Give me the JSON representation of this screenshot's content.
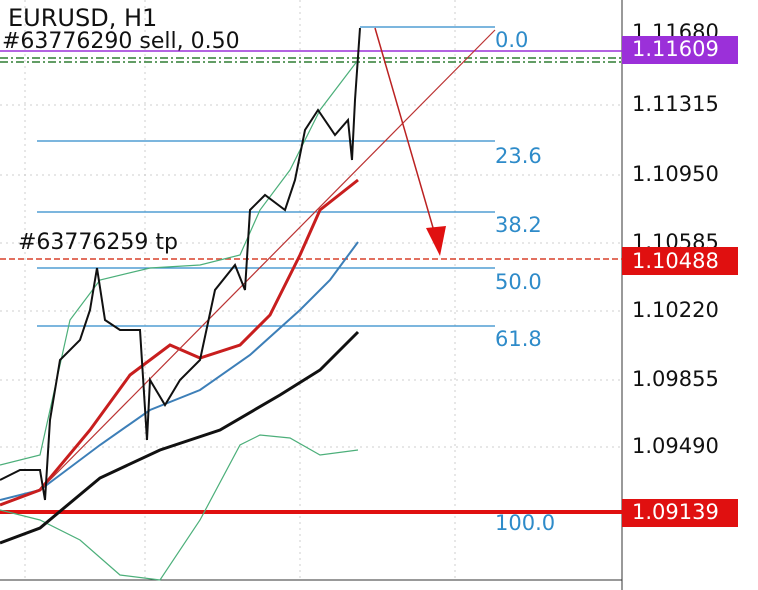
{
  "header": {
    "symbol": "EURUSD, H1"
  },
  "orders": [
    {
      "label": "#63776290 sell, 0.50"
    },
    {
      "label": "#63776259 tp"
    }
  ],
  "fibonacci_levels": [
    "0.0",
    "23.6",
    "38.2",
    "50.0",
    "61.8",
    "100.0"
  ],
  "price_axis": {
    "ticks": [
      "1.11680",
      "1.11315",
      "1.10950",
      "1.10585",
      "1.10220",
      "1.09855",
      "1.09490"
    ]
  },
  "price_tags": [
    "1.11609",
    "1.10488",
    "1.09139"
  ]
}
